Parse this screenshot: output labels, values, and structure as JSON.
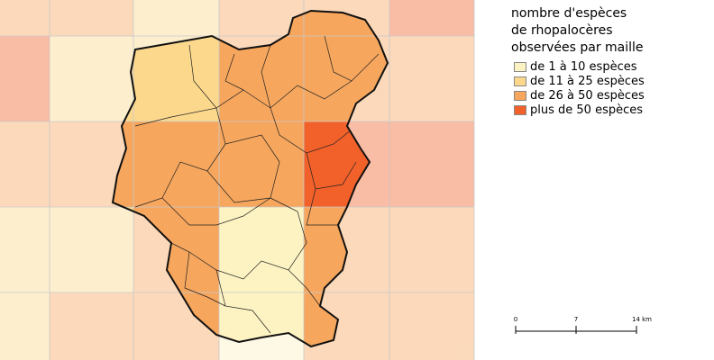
{
  "legend": {
    "title": "nombre d'espèces de rhopalocères observées par maille",
    "items": [
      {
        "label": "de 1 à 10 espèces",
        "color": "#fdf3c2"
      },
      {
        "label": "de 11 à 25 espèces",
        "color": "#fbd88c"
      },
      {
        "label": "de 26 à 50 espèces",
        "color": "#f6a65d"
      },
      {
        "label": "plus de 50 espèces",
        "color": "#f2612a"
      }
    ]
  },
  "scale_bar": {
    "labels": [
      "0",
      "7",
      "14 km"
    ]
  }
}
